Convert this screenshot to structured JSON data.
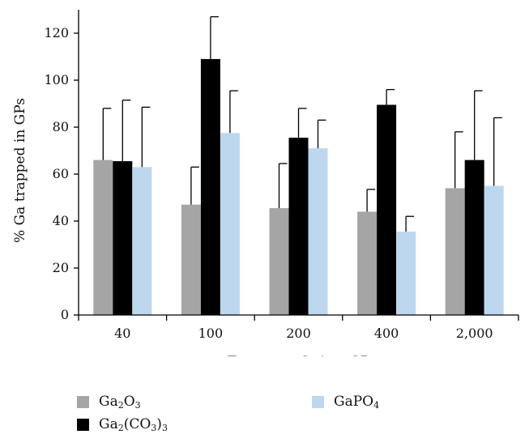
{
  "chart_data": {
    "type": "bar",
    "title": "",
    "xlabel_parts": [
      "Target ",
      "μ",
      "g Ga/mg GP"
    ],
    "ylabel": "% Ga trapped in GPs",
    "ylim": [
      0,
      130
    ],
    "yticks": [
      0,
      20,
      40,
      60,
      80,
      100,
      120
    ],
    "grid": false,
    "legend_position": "bottom",
    "categories": [
      "40",
      "100",
      "200",
      "400",
      "2,000"
    ],
    "series": [
      {
        "name": "Ga2O3",
        "label_parts": [
          [
            "Ga",
            false
          ],
          [
            "2",
            true
          ],
          [
            "O",
            false
          ],
          [
            "3",
            true
          ]
        ],
        "color": "#a5a5a5",
        "values": [
          66,
          47,
          45.5,
          44,
          54
        ],
        "error": [
          22,
          16,
          19,
          9.5,
          24
        ]
      },
      {
        "name": "Ga2(CO3)3",
        "label_parts": [
          [
            "Ga",
            false
          ],
          [
            "2",
            true
          ],
          [
            "(CO",
            false
          ],
          [
            "3",
            true
          ],
          [
            ")",
            false
          ],
          [
            "3",
            true
          ]
        ],
        "color": "#000000",
        "values": [
          65.5,
          109,
          75.5,
          89.5,
          66
        ],
        "error": [
          26,
          18,
          12.5,
          6.5,
          29.5
        ]
      },
      {
        "name": "GaPO4",
        "label_parts": [
          [
            "GaPO",
            false
          ],
          [
            "4",
            true
          ]
        ],
        "color": "#bdd7ee",
        "values": [
          63,
          77.5,
          71,
          35.5,
          55
        ],
        "error": [
          25.5,
          18,
          12,
          6.5,
          29
        ]
      }
    ]
  }
}
